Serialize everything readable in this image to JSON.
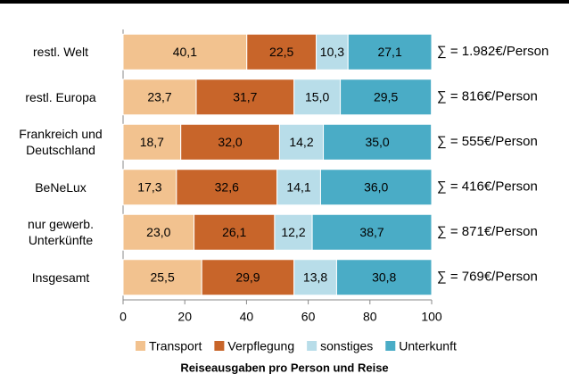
{
  "chart_data": {
    "type": "stacked-bar-horizontal",
    "title": "Reiseausgaben pro Person und Reise",
    "categories": [
      "restl. Welt",
      "restl. Europa",
      "Frankreich und Deutschland",
      "BeNeLux",
      "nur gewerb. Unterkünfte",
      "Insgesamt"
    ],
    "series": [
      {
        "name": "Transport",
        "color": "#f2c28f",
        "values": [
          40.1,
          23.7,
          18.7,
          17.3,
          23.0,
          25.5
        ],
        "value_labels": [
          "40,1",
          "23,7",
          "18,7",
          "17,3",
          "23,0",
          "25,5"
        ]
      },
      {
        "name": "Verpflegung",
        "color": "#c8652a",
        "values": [
          22.5,
          31.7,
          32.0,
          32.6,
          26.1,
          29.9
        ],
        "value_labels": [
          "22,5",
          "31,7",
          "32,0",
          "32,6",
          "26,1",
          "29,9"
        ]
      },
      {
        "name": "sonstiges",
        "color": "#b8dde9",
        "values": [
          10.3,
          15.0,
          14.2,
          14.1,
          12.2,
          13.8
        ],
        "value_labels": [
          "10,3",
          "15,0",
          "14,2",
          "14,1",
          "12,2",
          "13,8"
        ]
      },
      {
        "name": "Unterkunft",
        "color": "#4aacc6",
        "values": [
          27.1,
          29.5,
          35.0,
          36.0,
          38.7,
          30.8
        ],
        "value_labels": [
          "27,1",
          "29,5",
          "35,0",
          "36,0",
          "38,7",
          "30,8"
        ]
      }
    ],
    "annotations": [
      "∑ = 1.982€/Person",
      "∑ = 816€/Person",
      "∑ = 555€/Person",
      "∑ = 416€/Person",
      "∑ = 871€/Person",
      "∑ = 769€/Person"
    ],
    "xlim": [
      0,
      100
    ],
    "xticks": [
      0,
      20,
      40,
      60,
      80,
      100
    ],
    "legend": "bottom"
  }
}
